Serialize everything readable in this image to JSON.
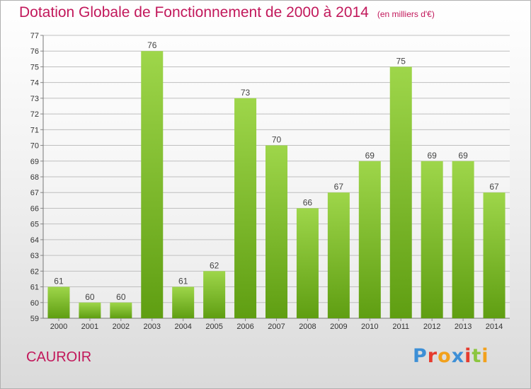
{
  "header": {
    "title": "Dotation Globale de Fonctionnement de 2000 à 2014",
    "subtitle": "(en milliers d'€)"
  },
  "footer": {
    "place": "CAUROIR",
    "logo_letters": [
      {
        "char": "P",
        "color": "#3d8fd6"
      },
      {
        "char": "r",
        "color": "#e63b2e"
      },
      {
        "char": "o",
        "color": "#f2a11c"
      },
      {
        "char": "x",
        "color": "#3d8fd6"
      },
      {
        "char": "i",
        "color": "#e63b2e"
      },
      {
        "char": "t",
        "color": "#8cc63f"
      },
      {
        "char": "i",
        "color": "#f2a11c"
      }
    ]
  },
  "chart_data": {
    "type": "bar",
    "title": "Dotation Globale de Fonctionnement de 2000 à 2014",
    "subtitle": "(en milliers d'€)",
    "categories": [
      "2000",
      "2001",
      "2002",
      "2003",
      "2004",
      "2005",
      "2006",
      "2007",
      "2008",
      "2009",
      "2010",
      "2011",
      "2012",
      "2013",
      "2014"
    ],
    "values": [
      61,
      60,
      60,
      76,
      61,
      62,
      73,
      70,
      66,
      67,
      69,
      75,
      69,
      69,
      67
    ],
    "ylim": [
      59,
      77
    ],
    "yticks": [
      59,
      60,
      61,
      62,
      63,
      64,
      65,
      66,
      67,
      68,
      69,
      70,
      71,
      72,
      73,
      74,
      75,
      76,
      77
    ],
    "grid": true,
    "bar_color_light": "#9ed64a",
    "bar_color_dark": "#5f9e12",
    "grid_color": "#bfbfbf"
  }
}
